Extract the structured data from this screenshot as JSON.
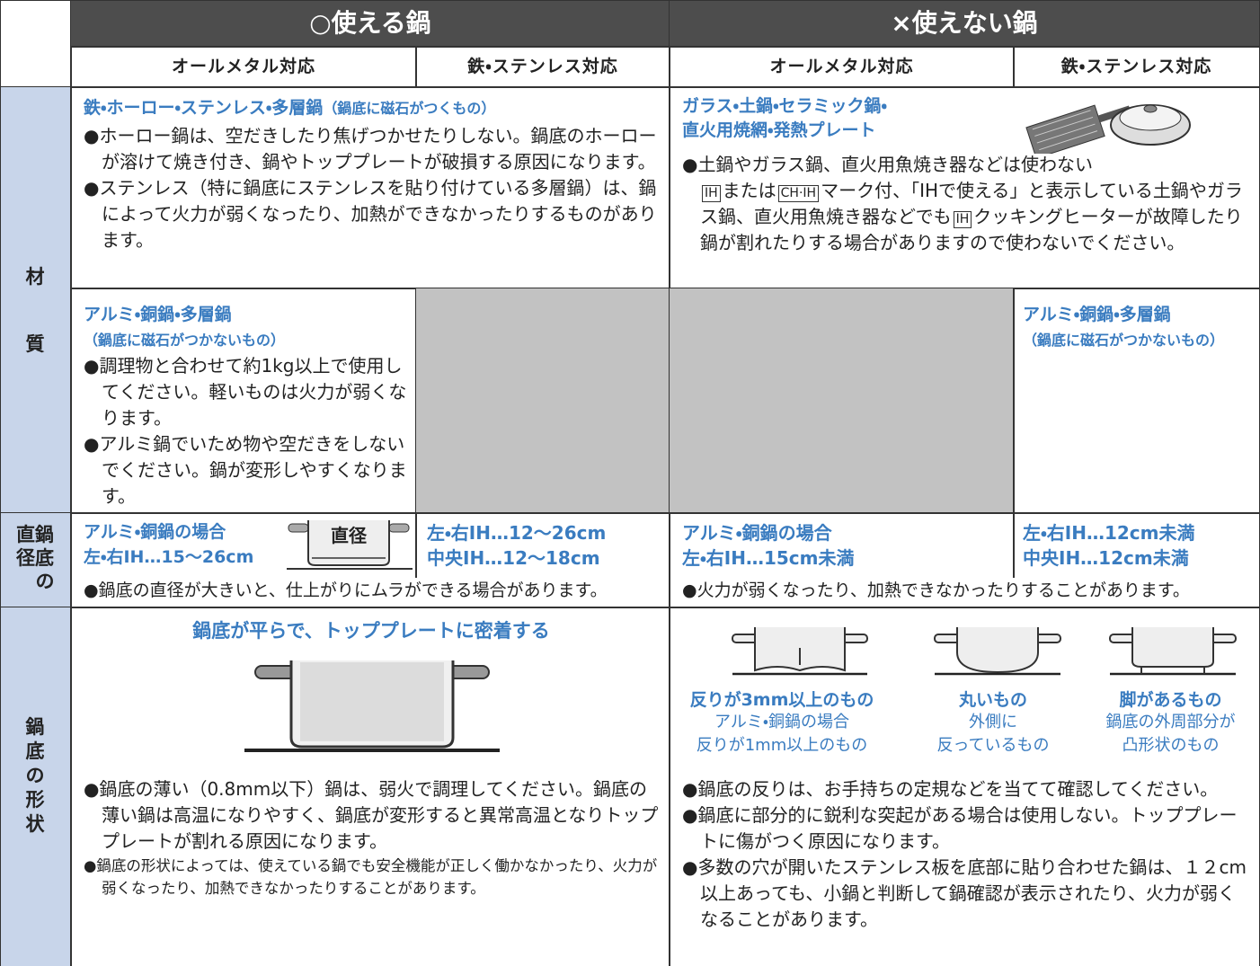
{
  "header": {
    "usable": "○使える鍋",
    "unusable": "×使えない鍋",
    "columns": [
      "オールメタル対応",
      "鉄・ステンレス対応",
      "オールメタル対応",
      "鉄・ステンレス対応"
    ]
  },
  "row_labels": {
    "material": [
      "材",
      "質"
    ],
    "diameter": [
      "直鍋",
      "径底",
      "の"
    ],
    "shape": [
      "鍋",
      "底",
      "の",
      "形",
      "状"
    ]
  },
  "material": {
    "magnetic": {
      "heading": "鉄・ホーロー・ステンレス・多層鍋",
      "note": "（鍋底に磁石がつくもの）",
      "bullets": [
        "●ホーロー鍋は、空だきしたり焦げつかせたりしない。鍋底のホーローが溶けて焼き付き、鍋やトッププレートが破損する原因になります。",
        "●ステンレス（特に鍋底にステンレスを貼り付けている多層鍋）は、鍋によって火力が弱くなったり、加熱ができなかったりするものがあります。"
      ]
    },
    "unusable": {
      "heading": [
        "ガラス・土鍋・セラミック鍋・",
        "直火用焼網・発熱プレート"
      ],
      "bullet": "●土鍋やガラス鍋、直火用魚焼き器などは使わない",
      "mark_ih": "IH",
      "text_or": "または",
      "mark_chih": "CH·IH",
      "text_1": "マーク付、「IHで使える」と表示している土鍋やガラス鍋、直火用魚焼き器などでも",
      "mark_ih2": "IH",
      "text_2": "クッキングヒーターが故障したり鍋が割れたりする場合がありますので使わないでください。"
    },
    "nonmagnetic": {
      "heading": "アルミ・銅鍋・多層鍋",
      "note": "（鍋底に磁石がつかないもの）",
      "bullets": [
        "●調理物と合わせて約1kg以上で使用してください。軽いものは火力が弱くなります。",
        "●アルミ鍋でいため物や空だきをしないでください。鍋が変形しやすくなります。"
      ]
    },
    "nonmagnetic_unusable": {
      "heading": "アルミ・銅鍋・多層鍋",
      "note": "（鍋底に磁石がつかないもの）"
    }
  },
  "diameter": {
    "allmetal": {
      "heading": "アルミ・銅鍋の場合",
      "range": "左・右IH…15〜26cm",
      "figure_label": "直径"
    },
    "steel": [
      "左・右IH…12〜26cm",
      "中央IH…12〜18cm"
    ],
    "usable_note": "●鍋底の直径が大きいと、仕上がりにムラができる場合があります。",
    "allmetal_unusable": {
      "heading": "アルミ・銅鍋の場合",
      "range": "左・右IH…15cm未満"
    },
    "steel_unusable": [
      "左・右IH…12cm未満",
      "中央IH…12cm未満"
    ],
    "unusable_note": "●火力が弱くなったり、加熱できなかったりすることがあります。"
  },
  "shape": {
    "usable": {
      "heading": "鍋底が平らで、トッププレートに密着する",
      "bullets": [
        "●鍋底の薄い（0.8mm以下）鍋は、弱火で調理してください。鍋底の薄い鍋は高温になりやすく、鍋底が変形すると異常高温となりトッププレートが割れる原因になります。",
        "●鍋底の形状によっては、使えている鍋でも安全機能が正しく働かなかったり、火力が弱くなったり、加熱できなかったりすることがあります。"
      ]
    },
    "unusable": {
      "examples": [
        {
          "title": "反りが3mm以上のもの",
          "detail": [
            "アルミ・銅鍋の場合",
            "反りが1mm以上のもの"
          ]
        },
        {
          "title": "丸いもの",
          "detail": [
            "外側に",
            "反っているもの"
          ]
        },
        {
          "title": "脚があるもの",
          "detail": [
            "鍋底の外周部分が",
            "凸形状のもの"
          ]
        }
      ],
      "bullets": [
        "●鍋底の反りは、お手持ちの定規などを当てて確認してください。",
        "●鍋底に部分的に鋭利な突起がある場合は使用しない。トッププレートに傷がつく原因になります。",
        "●多数の穴が開いたステンレス板を底部に貼り合わせた鍋は、１２cm以上あっても、小鍋と判断して鍋確認が表示されたり、火力が弱くなることがあります。"
      ]
    }
  }
}
